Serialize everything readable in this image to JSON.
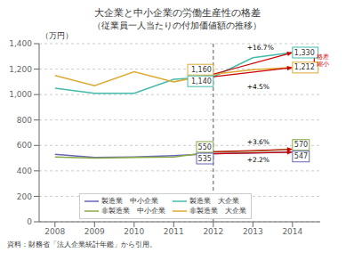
{
  "chart_data": {
    "type": "line",
    "title": "大企業と中小企業の労働生産性の格差",
    "subtitle": "（従業員一人当たりの付加価値額の推移）",
    "y_label": "（万円）",
    "source": "資料：財務省「法人企業統計年鑑」から引用。",
    "x": [
      2008,
      2009,
      2010,
      2011,
      2012,
      2013,
      2014
    ],
    "series": [
      {
        "name": "製造業　中小企業",
        "color": "#6666bb",
        "values": [
          530,
          505,
          510,
          520,
          535,
          540,
          547
        ]
      },
      {
        "name": "製造業　大企業",
        "color": "#44bbaa",
        "values": [
          1050,
          1010,
          1010,
          1120,
          1140,
          1290,
          1330
        ]
      },
      {
        "name": "非製造業　中小企業",
        "color": "#88aa44",
        "values": [
          510,
          500,
          505,
          510,
          550,
          555,
          570
        ]
      },
      {
        "name": "非製造業　大企業",
        "color": "#ddaa33",
        "values": [
          1150,
          1070,
          1180,
          1100,
          1160,
          1195,
          1212
        ]
      }
    ],
    "xlim": [
      2007.6,
      2014.7
    ],
    "xticks": [
      2008,
      2009,
      2010,
      2011,
      2012,
      2013,
      2014
    ],
    "ylim": [
      0,
      1400
    ],
    "yticks": [
      0,
      200,
      400,
      600,
      800,
      {
        "value": 1000,
        "label": "1,000"
      },
      {
        "value": 1200,
        "label": "1,200"
      },
      {
        "value": 1400,
        "label": "1,400"
      }
    ],
    "grid": true,
    "legend": "lower center",
    "reference_line": {
      "x": 2012,
      "color": "#555555",
      "line_style": "dashed"
    },
    "arrows": [
      {
        "x": [
          2012,
          2014
        ],
        "y": [
          1160,
          1330
        ],
        "color": "#cc0000"
      },
      {
        "x": [
          2012,
          2014
        ],
        "y": [
          1140,
          1212
        ],
        "color": "#cc0000"
      },
      {
        "x": [
          2012,
          2014
        ],
        "y": [
          550,
          570
        ],
        "color": "#cc0000"
      },
      {
        "x": [
          2012,
          2014
        ],
        "y": [
          535,
          547
        ],
        "color": "#cc0000"
      }
    ],
    "double_arrow": {
      "x": 2014.55,
      "y": [
        1212,
        1330
      ],
      "color": "#cc0000"
    },
    "start_labels": [
      {
        "text": "1,160",
        "x": 2012,
        "y": 1160,
        "color": "#ddaa33"
      },
      {
        "text": "1,140",
        "x": 2012,
        "y": 1140,
        "color": "#44bbaa"
      },
      {
        "text": "550",
        "x": 2012,
        "y": 550,
        "color": "#88aa44"
      },
      {
        "text": "535",
        "x": 2012,
        "y": 535,
        "color": "#6666bb"
      }
    ],
    "end_labels": [
      {
        "text": "1,330",
        "x": 2014,
        "y": 1330,
        "color": "#44bbaa"
      },
      {
        "text": "1,212",
        "x": 2014,
        "y": 1212,
        "color": "#ddaa33"
      },
      {
        "text": "570",
        "x": 2014,
        "y": 570,
        "color": "#88aa44"
      },
      {
        "text": "547",
        "x": 2014,
        "y": 547,
        "color": "#6666bb"
      }
    ],
    "change_labels": [
      {
        "text": "+16.7%",
        "x": 2012.85,
        "y": 1368
      },
      {
        "text": "+4.5%",
        "x": 2012.85,
        "y": 1060
      },
      {
        "text": "+3.6%",
        "x": 2012.85,
        "y": 628
      },
      {
        "text": "+2.2%",
        "x": 2012.85,
        "y": 490
      }
    ],
    "gap_label": {
      "text": "格差\n縮小",
      "x": 2014.62,
      "y": 1271,
      "color": "#cc0000"
    }
  }
}
